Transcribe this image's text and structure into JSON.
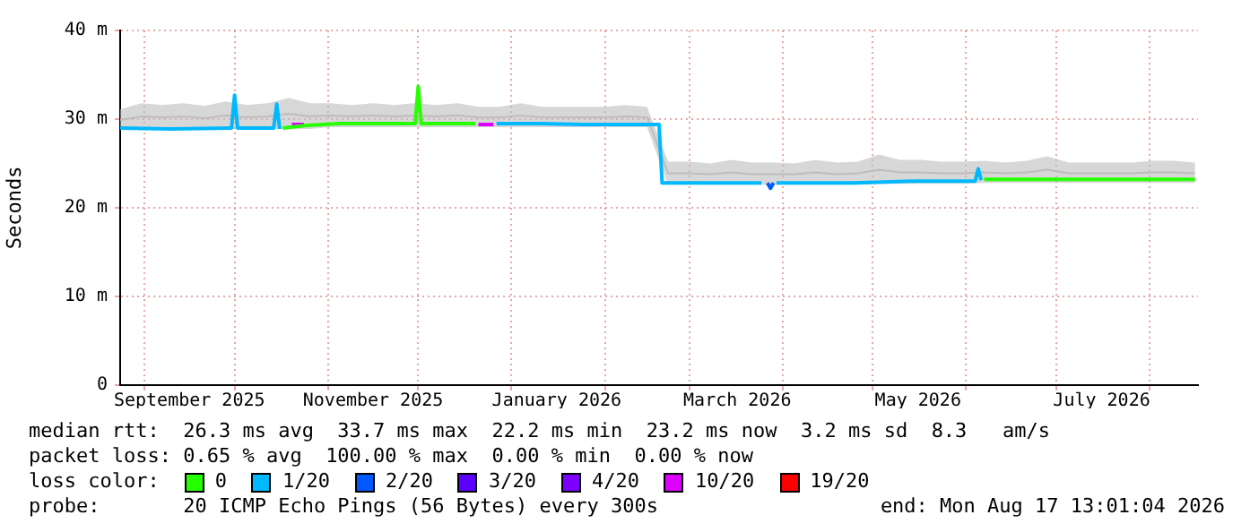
{
  "chart_data": {
    "type": "line",
    "ylabel": "Seconds",
    "legend_title": "loss color:",
    "legend": "bottom",
    "grid": true,
    "marker": "none",
    "xlim": [
      "2025-08-24",
      "2026-08-17"
    ],
    "xticks": [
      {
        "value": "2025-09-01",
        "label": null
      },
      {
        "value": "2025-09-16",
        "label": "September 2025"
      },
      {
        "value": "2025-10-01",
        "label": null
      },
      {
        "value": "2025-11-01",
        "label": null
      },
      {
        "value": "2025-11-16",
        "label": "November 2025"
      },
      {
        "value": "2025-12-01",
        "label": null
      },
      {
        "value": "2026-01-01",
        "label": null
      },
      {
        "value": "2026-01-16",
        "label": "January 2026"
      },
      {
        "value": "2026-02-01",
        "label": null
      },
      {
        "value": "2026-03-01",
        "label": null
      },
      {
        "value": "2026-03-17",
        "label": "March 2026"
      },
      {
        "value": "2026-04-01",
        "label": null
      },
      {
        "value": "2026-05-01",
        "label": null
      },
      {
        "value": "2026-05-16",
        "label": "May 2026"
      },
      {
        "value": "2026-06-01",
        "label": null
      },
      {
        "value": "2026-07-01",
        "label": null
      },
      {
        "value": "2026-07-16",
        "label": "July 2026"
      },
      {
        "value": "2026-08-01",
        "label": null
      }
    ],
    "ylim": [
      0,
      40
    ],
    "yticks": [
      0,
      {
        "value": 10,
        "label": "10 m"
      },
      {
        "value": 20,
        "label": "20 m"
      },
      {
        "value": 30,
        "label": "30 m"
      },
      {
        "value": 40,
        "label": "40 m"
      }
    ],
    "series": [
      {
        "color": "#bdbdbd",
        "x": [
          "2025-08-24",
          "2025-08-31",
          "2025-09-07",
          "2025-09-14",
          "2025-09-21",
          "2025-09-28",
          "2025-10-05",
          "2025-10-12",
          "2025-10-19",
          "2025-10-26",
          "2025-11-02",
          "2025-11-09",
          "2025-11-16",
          "2025-11-23",
          "2025-11-30",
          "2025-12-07",
          "2025-12-14",
          "2025-12-21",
          "2025-12-28",
          "2026-01-04",
          "2026-01-11",
          "2026-01-18",
          "2026-01-25",
          "2026-02-01",
          "2026-02-08",
          "2026-02-15",
          "2026-02-22",
          "2026-03-01",
          "2026-03-08",
          "2026-03-15",
          "2026-03-22",
          "2026-03-29",
          "2026-04-05",
          "2026-04-12",
          "2026-04-19",
          "2026-04-26",
          "2026-05-03",
          "2026-05-10",
          "2026-05-17",
          "2026-05-24",
          "2026-05-31",
          "2026-06-07",
          "2026-06-14",
          "2026-06-21",
          "2026-06-28",
          "2026-07-05",
          "2026-07-12",
          "2026-07-19",
          "2026-07-26",
          "2026-08-02",
          "2026-08-09",
          "2026-08-16"
        ],
        "values": [
          29.9,
          30.3,
          30.2,
          30.3,
          30.1,
          30.4,
          30.2,
          30.3,
          30.6,
          30.3,
          30.4,
          30.3,
          30.4,
          30.3,
          30.4,
          30.3,
          30.4,
          30.2,
          30.2,
          30.4,
          30.2,
          30.2,
          30.2,
          30.2,
          30.3,
          30.2,
          23.9,
          23.9,
          23.8,
          24.0,
          23.8,
          23.8,
          23.8,
          24.0,
          23.8,
          23.9,
          24.3,
          24.0,
          24.0,
          23.9,
          23.9,
          24.0,
          23.9,
          24.0,
          24.3,
          23.9,
          23.9,
          23.9,
          23.9,
          24.0,
          24.0,
          23.9
        ],
        "lower": [
          28.8,
          28.8,
          28.8,
          28.8,
          28.8,
          28.9,
          28.9,
          28.9,
          28.9,
          28.9,
          29.1,
          29.1,
          29.1,
          29.1,
          29.1,
          29.1,
          29.1,
          29.1,
          29.1,
          29.1,
          29.1,
          29.1,
          29.1,
          29.1,
          29.1,
          29.1,
          22.6,
          22.6,
          22.6,
          22.6,
          22.6,
          22.6,
          22.6,
          22.6,
          22.6,
          22.6,
          22.7,
          22.7,
          22.7,
          22.7,
          22.7,
          22.8,
          22.8,
          22.8,
          22.8,
          22.8,
          22.8,
          22.8,
          22.8,
          22.8,
          22.8,
          22.8
        ],
        "upper": [
          31.1,
          31.8,
          31.6,
          31.8,
          31.5,
          32.0,
          31.6,
          31.8,
          32.4,
          31.8,
          31.8,
          31.6,
          31.8,
          31.6,
          31.8,
          31.6,
          31.8,
          31.4,
          31.4,
          31.8,
          31.4,
          31.4,
          31.4,
          31.4,
          31.6,
          31.4,
          25.2,
          25.2,
          25.0,
          25.4,
          25.1,
          25.1,
          25.0,
          25.4,
          25.1,
          25.2,
          26.0,
          25.4,
          25.4,
          25.2,
          25.2,
          25.3,
          25.1,
          25.3,
          25.8,
          25.1,
          25.1,
          25.1,
          25.1,
          25.3,
          25.3,
          25.1
        ]
      },
      {
        "name": "0",
        "color": "#26ff00",
        "x": [
          "2025-10-17",
          "2025-10-25",
          "2025-11-05",
          "2025-11-20",
          "2025-11-30",
          "2025-12-01",
          "2025-12-02",
          "2025-12-20",
          "2025-12-21",
          "2026-06-07",
          "2026-07-01",
          "2026-08-01",
          "2026-08-16"
        ],
        "values": [
          29.0,
          29.3,
          29.5,
          29.5,
          29.5,
          33.7,
          29.5,
          29.5,
          null,
          23.2,
          23.2,
          23.2,
          23.2
        ]
      },
      {
        "name": "1/20",
        "color": "#00b8ff",
        "x": [
          "2025-08-24",
          "2025-09-10",
          "2025-09-30",
          "2025-10-01",
          "2025-10-02",
          "2025-10-14",
          "2025-10-15",
          "2025-10-16",
          "2025-10-20",
          "2025-12-27",
          "2026-01-10",
          "2026-01-25",
          "2026-02-19",
          "2026-02-20",
          "2026-03-15",
          "2026-03-25",
          "2026-03-26",
          "2026-03-30",
          "2026-04-25",
          "2026-05-15",
          "2026-06-04",
          "2026-06-05",
          "2026-06-06"
        ],
        "values": [
          29.0,
          28.9,
          29.0,
          32.7,
          29.0,
          29.0,
          31.7,
          28.9,
          null,
          29.5,
          29.5,
          29.4,
          29.4,
          22.8,
          22.8,
          22.8,
          null,
          22.8,
          22.8,
          23.0,
          23.0,
          24.4,
          23.1
        ]
      },
      {
        "name": "2/20",
        "color": "#0059ff",
        "x": [
          "2026-03-27",
          "2026-03-28",
          "2026-03-29"
        ],
        "values": [
          22.8,
          22.2,
          22.8
        ]
      },
      {
        "name": "3/20",
        "color": "#5e00ff"
      },
      {
        "name": "4/20",
        "color": "#7e00ff"
      },
      {
        "name": "10/20",
        "color": "#dd00ff",
        "x": [
          "2025-10-20",
          "2025-10-24",
          "2025-10-25",
          "2025-12-21",
          "2025-12-26"
        ],
        "values": [
          29.4,
          29.4,
          null,
          29.4,
          29.4
        ]
      },
      {
        "name": "19/20",
        "color": "#ff0000"
      }
    ],
    "annotations": [
      "median rtt:  26.3 ms avg  33.7 ms max  22.2 ms min  23.2 ms now  3.2 ms sd  8.3   am/s",
      "packet loss: 0.65 % avg  100.00 % max  0.00 % min  0.00 % now",
      "probe:       20 ICMP Echo Pings (56 Bytes) every 300s",
      "end: Mon Aug 17 13:01:04 2026"
    ]
  }
}
